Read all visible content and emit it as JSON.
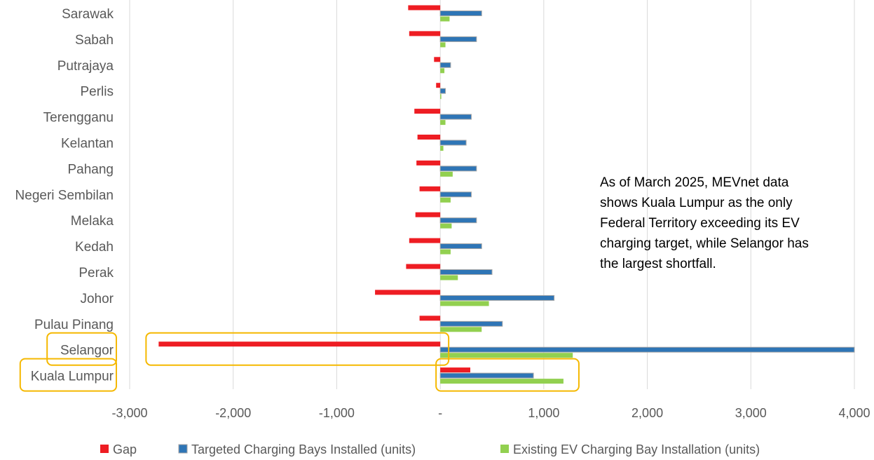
{
  "chart_data": {
    "type": "bar",
    "orientation": "horizontal",
    "categories": [
      "Sarawak",
      "Sabah",
      "Putrajaya",
      "Perlis",
      "Terengganu",
      "Kelantan",
      "Pahang",
      "Negeri Sembilan",
      "Melaka",
      "Kedah",
      "Perak",
      "Johor",
      "Pulau Pinang",
      "Selangor",
      "Kuala Lumpur"
    ],
    "series": [
      {
        "name": "Gap",
        "color": "#ee1d23",
        "values": [
          -310,
          -300,
          -60,
          -40,
          -250,
          -220,
          -230,
          -200,
          -240,
          -300,
          -330,
          -630,
          -200,
          -2720,
          290
        ]
      },
      {
        "name": "Targeted Charging Bays Installed (units)",
        "color": "#2e75b6",
        "values": [
          400,
          350,
          100,
          50,
          300,
          250,
          350,
          300,
          350,
          400,
          500,
          1100,
          600,
          4000,
          900
        ]
      },
      {
        "name": "Existing EV Charging Bay Installation (units)",
        "color": "#92d050",
        "values": [
          90,
          50,
          40,
          10,
          50,
          30,
          120,
          100,
          110,
          100,
          170,
          470,
          400,
          1280,
          1190
        ]
      }
    ],
    "xlim": [
      -3000,
      4000
    ],
    "xticks": [
      "-3,000",
      "-2,000",
      "-1,000",
      "-",
      "1,000",
      "2,000",
      "3,000",
      "4,000"
    ],
    "xtick_values": [
      -3000,
      -2000,
      -1000,
      0,
      1000,
      2000,
      3000,
      4000
    ],
    "grid": true,
    "legend_position": "bottom",
    "highlighted_categories": [
      "Selangor",
      "Kuala Lumpur"
    ],
    "highlight_color": "#f5b800",
    "annotation": "As of March 2025, MEVnet data shows Kuala Lumpur as the only Federal Territory exceeding its EV charging target, while Selangor has the largest shortfall."
  }
}
